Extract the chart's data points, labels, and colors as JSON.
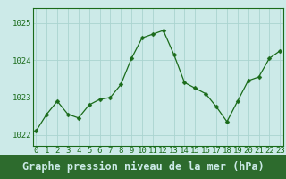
{
  "x": [
    0,
    1,
    2,
    3,
    4,
    5,
    6,
    7,
    8,
    9,
    10,
    11,
    12,
    13,
    14,
    15,
    16,
    17,
    18,
    19,
    20,
    21,
    22,
    23
  ],
  "y": [
    1022.1,
    1022.55,
    1022.9,
    1022.55,
    1022.45,
    1022.8,
    1022.95,
    1023.0,
    1023.35,
    1024.05,
    1024.6,
    1024.7,
    1024.8,
    1024.15,
    1023.4,
    1023.25,
    1023.1,
    1022.75,
    1022.35,
    1022.9,
    1023.45,
    1023.55,
    1024.05,
    1024.25
  ],
  "line_color": "#1a6b1a",
  "marker": "D",
  "marker_size": 2.5,
  "bg_color": "#cceae8",
  "grid_color": "#aad4d0",
  "bottom_bar_color": "#2d6b2d",
  "title": "Graphe pression niveau de la mer (hPa)",
  "title_fontsize": 8.5,
  "title_color": "#cceae8",
  "yticks": [
    1022,
    1023,
    1024,
    1025
  ],
  "ylim": [
    1021.7,
    1025.4
  ],
  "xlim": [
    -0.3,
    23.3
  ],
  "xticks": [
    0,
    1,
    2,
    3,
    4,
    5,
    6,
    7,
    8,
    9,
    10,
    11,
    12,
    13,
    14,
    15,
    16,
    17,
    18,
    19,
    20,
    21,
    22,
    23
  ],
  "tick_fontsize": 6.5,
  "tick_color": "#1a6b1a",
  "axis_color": "#1a6b1a",
  "xlabel_bg": "#2d6b2d"
}
